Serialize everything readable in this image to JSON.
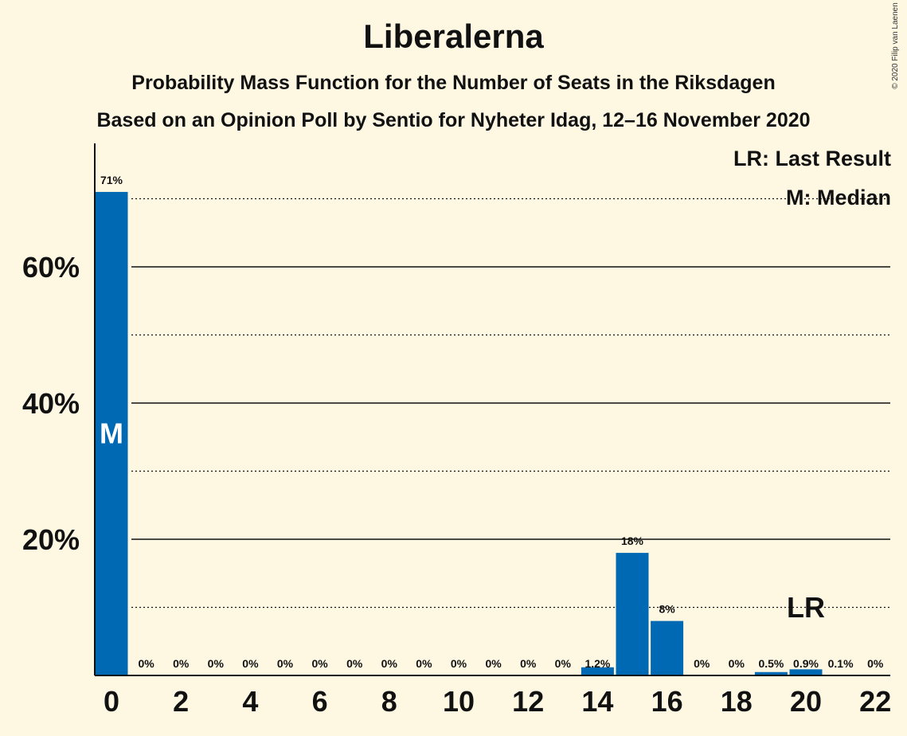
{
  "title": "Liberalerna",
  "subtitle": "Probability Mass Function for the Number of Seats in the Riksdagen",
  "subtitle2": "Based on an Opinion Poll by Sentio for Nyheter Idag, 12–16 November 2020",
  "copyright": "© 2020 Filip van Laenen",
  "legend": {
    "last_result": "LR: Last Result",
    "median": "M: Median"
  },
  "colors": {
    "bar": "#0069b4",
    "background": "#fef8e3"
  },
  "chart_data": {
    "type": "bar",
    "title": "Liberalerna",
    "x": [
      0,
      1,
      2,
      3,
      4,
      5,
      6,
      7,
      8,
      9,
      10,
      11,
      12,
      13,
      14,
      15,
      16,
      17,
      18,
      19,
      20,
      21,
      22
    ],
    "values": [
      71,
      0,
      0,
      0,
      0,
      0,
      0,
      0,
      0,
      0,
      0,
      0,
      0,
      0,
      1.2,
      18,
      8,
      0,
      0,
      0.5,
      0.9,
      0.1,
      0
    ],
    "labels": [
      "71%",
      "0%",
      "0%",
      "0%",
      "0%",
      "0%",
      "0%",
      "0%",
      "0%",
      "0%",
      "0%",
      "0%",
      "0%",
      "0%",
      "1.2%",
      "18%",
      "8%",
      "0%",
      "0%",
      "0.5%",
      "0.9%",
      "0.1%",
      "0%"
    ],
    "x_ticks": [
      "0",
      "2",
      "4",
      "6",
      "8",
      "10",
      "12",
      "14",
      "16",
      "18",
      "20",
      "22"
    ],
    "y_ticks": [
      "20%",
      "40%",
      "60%"
    ],
    "ylim": [
      0,
      78
    ],
    "median_seat": 0,
    "median_label": "M",
    "last_result_seat": 20,
    "last_result_label": "LR",
    "grid": "solid at 20/40/60, dotted at 10/30/50/70"
  }
}
